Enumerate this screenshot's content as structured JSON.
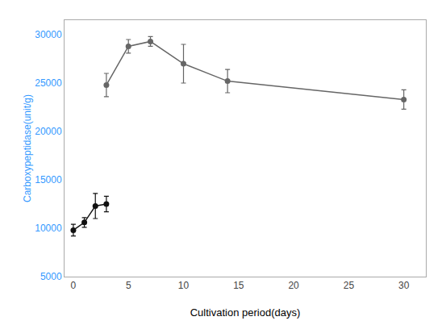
{
  "chart_data": {
    "type": "line",
    "xlabel": "Cultivation period(days)",
    "ylabel": "Carboxypeptidase(unit/g)",
    "xlim": [
      -0.8,
      32
    ],
    "ylim": [
      5000,
      31500
    ],
    "xticks": [
      0,
      5,
      10,
      15,
      20,
      25,
      30
    ],
    "yticks": [
      5000,
      10000,
      15000,
      20000,
      25000,
      30000
    ],
    "grid": false,
    "marker": "circle",
    "line_style": "solid",
    "series": [
      {
        "color": "#111111",
        "x": [
          0,
          1,
          2,
          3
        ],
        "values": [
          9800,
          10600,
          12300,
          12500
        ],
        "error": [
          600,
          500,
          1300,
          800
        ]
      },
      {
        "color": "#666666",
        "x": [
          3,
          5,
          7,
          10,
          14,
          30
        ],
        "values": [
          24800,
          28800,
          29300,
          27000,
          25200,
          23300
        ],
        "error": [
          1200,
          700,
          500,
          2000,
          1200,
          1000
        ]
      }
    ]
  }
}
